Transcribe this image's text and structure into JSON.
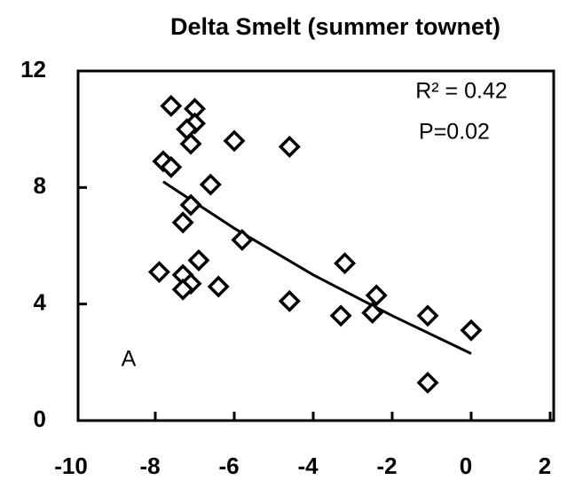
{
  "chart_data": {
    "type": "scatter",
    "title": "Delta Smelt (summer townet)",
    "annotations": [
      "R² = 0.42",
      "P=0.02",
      "A"
    ],
    "x": [
      -7.6,
      -7.0,
      -7.0,
      -7.2,
      -7.1,
      -6.0,
      -4.6,
      -7.8,
      -7.6,
      -6.6,
      -7.1,
      -7.3,
      -5.8,
      -7.9,
      -6.9,
      -3.2,
      -7.3,
      -7.1,
      -7.3,
      -6.4,
      -4.6,
      -2.4,
      -3.3,
      -2.5,
      -1.1,
      0.0,
      -1.1
    ],
    "values": [
      10.8,
      10.7,
      10.2,
      10.0,
      9.5,
      9.6,
      9.4,
      8.9,
      8.7,
      8.1,
      7.4,
      6.8,
      6.2,
      5.1,
      5.5,
      5.4,
      5.0,
      4.7,
      4.5,
      4.6,
      4.1,
      4.3,
      3.6,
      3.7,
      3.6,
      3.1,
      1.3
    ],
    "color": "#000000",
    "fit_line": {
      "x": [
        -7.8,
        -6,
        -4,
        -2,
        0
      ],
      "values": [
        8.2,
        6.6,
        5.0,
        3.6,
        2.3
      ]
    },
    "xlim": [
      -10,
      2
    ],
    "xticks": [
      -10,
      -8,
      -6,
      -4,
      -2,
      0,
      2
    ],
    "ylim": [
      0,
      12
    ],
    "yticks": [
      0,
      4,
      8,
      12
    ]
  }
}
